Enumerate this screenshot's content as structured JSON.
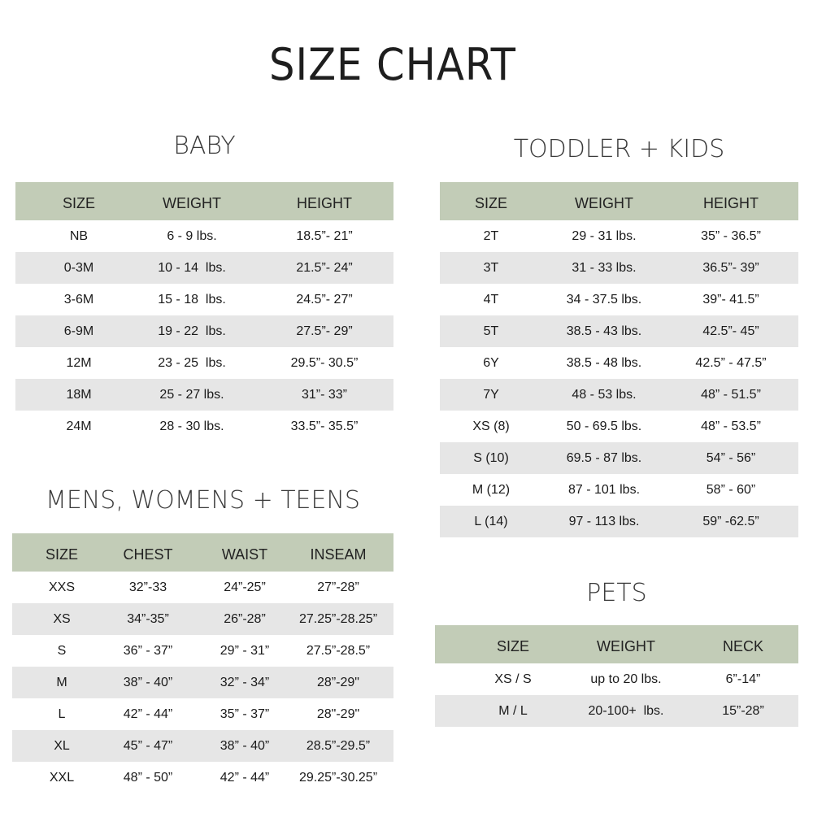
{
  "title": "SIZE CHART",
  "colors": {
    "header": "#c2ccb7",
    "stripe": "#e6e6e6"
  },
  "baby": {
    "heading": "BABY",
    "columns": [
      "SIZE",
      "WEIGHT",
      "HEIGHT"
    ],
    "rows": [
      [
        "NB",
        "6 - 9 lbs.",
        "18.5”- 21”"
      ],
      [
        "0-3M",
        "10 - 14  lbs.",
        "21.5”- 24”"
      ],
      [
        "3-6M",
        "15 - 18  lbs.",
        "24.5”- 27”"
      ],
      [
        "6-9M",
        "19 - 22  lbs.",
        "27.5”- 29”"
      ],
      [
        "12M",
        "23 - 25  lbs.",
        "29.5”- 30.5”"
      ],
      [
        "18M",
        "25 - 27 lbs.",
        "31”- 33”"
      ],
      [
        "24M",
        "28 - 30 lbs.",
        "33.5”- 35.5”"
      ]
    ]
  },
  "toddler_kids": {
    "heading": "TODDLER + KIDS",
    "columns": [
      "SIZE",
      "WEIGHT",
      "HEIGHT"
    ],
    "rows": [
      [
        "2T",
        "29 - 31 lbs.",
        "35” - 36.5”"
      ],
      [
        "3T",
        "31 - 33 lbs.",
        "36.5”- 39”"
      ],
      [
        "4T",
        "34 - 37.5 lbs.",
        "39”- 41.5”"
      ],
      [
        "5T",
        "38.5 - 43 lbs.",
        "42.5”- 45”"
      ],
      [
        "6Y",
        "38.5 - 48 lbs.",
        "42.5” - 47.5”"
      ],
      [
        "7Y",
        "48 - 53 lbs.",
        "48” - 51.5”"
      ],
      [
        "XS (8)",
        "50 - 69.5 lbs.",
        "48” - 53.5”"
      ],
      [
        "S (10)",
        "69.5 - 87 lbs.",
        "54” - 56”"
      ],
      [
        "M (12)",
        "87 - 101 lbs.",
        "58” - 60”"
      ],
      [
        "L (14)",
        "97 - 113 lbs.",
        "59” -62.5”"
      ]
    ]
  },
  "adults": {
    "heading": "MENS, WOMENS + TEENS",
    "columns": [
      "SIZE",
      "CHEST",
      "WAIST",
      "INSEAM"
    ],
    "rows": [
      [
        "XXS",
        "32”-33",
        "24”-25”",
        "27”-28”"
      ],
      [
        "XS",
        "34”-35”",
        "26”-28”",
        "27.25”-28.25”"
      ],
      [
        "S",
        "36” - 37”",
        "29” - 31”",
        "27.5”-28.5”"
      ],
      [
        "M",
        "38” - 40”",
        "32” - 34”",
        "28”-29\""
      ],
      [
        "L",
        "42” - 44”",
        "35” - 37”",
        "28\"-29\""
      ],
      [
        "XL",
        "45” - 47”",
        "38” - 40”",
        "28.5”-29.5”"
      ],
      [
        "XXL",
        "48” - 50”",
        "42” - 44”",
        "29.25”-30.25”"
      ]
    ]
  },
  "pets": {
    "heading": "PETS",
    "columns": [
      "SIZE",
      "WEIGHT",
      "NECK"
    ],
    "rows": [
      [
        "XS / S",
        "up to 20 lbs.",
        "6”-14”"
      ],
      [
        "M / L",
        "20-100+  lbs.",
        "15”-28”"
      ]
    ]
  }
}
